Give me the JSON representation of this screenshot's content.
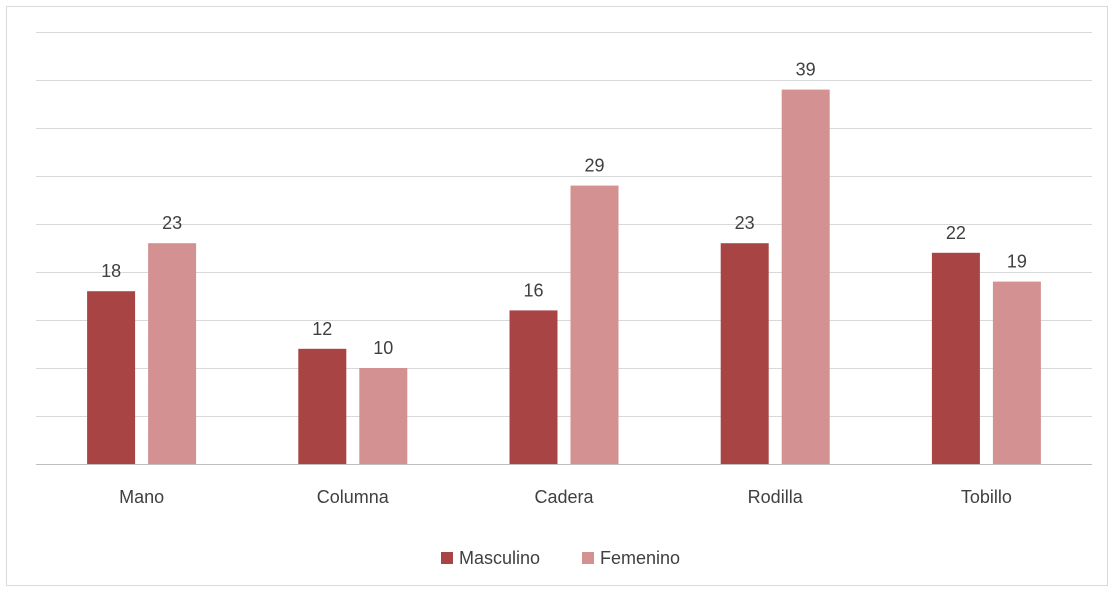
{
  "chart_data": {
    "type": "bar",
    "title": "",
    "xlabel": "",
    "ylabel": "",
    "categories": [
      "Mano",
      "Columna",
      "Cadera",
      "Rodilla",
      "Tobillo"
    ],
    "series": [
      {
        "name": "Masculino",
        "values": [
          18,
          12,
          16,
          23,
          22
        ],
        "color": "#a94444"
      },
      {
        "name": "Femenino",
        "values": [
          23,
          10,
          29,
          39,
          19
        ],
        "color": "#d39191"
      }
    ],
    "ylim": [
      0,
      45
    ],
    "y_step": 5,
    "grid": true,
    "y_tick_labels_shown": false,
    "data_labels": true,
    "legend": "bottom"
  }
}
